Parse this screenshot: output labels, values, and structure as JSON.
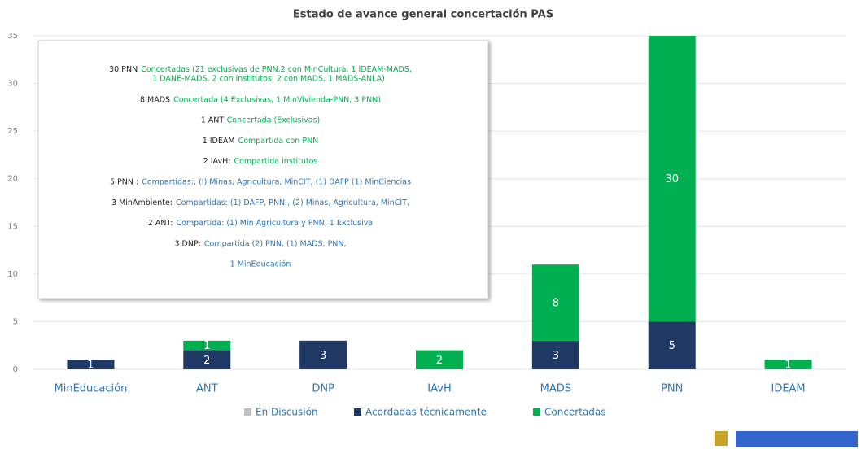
{
  "chart_data": {
    "type": "stacked_bar",
    "title": "Estado de avance general concertación PAS",
    "categories": [
      "MinEducación",
      "ANT",
      "DNP",
      "IAvH",
      "MADS",
      "PNN",
      "IDEAM"
    ],
    "series": [
      {
        "name": "En Discusión",
        "color": "#bfbfbf",
        "values": [
          0,
          0,
          0,
          0,
          0,
          0,
          0
        ]
      },
      {
        "name": "Acordadas técnicamente",
        "color": "#1f3864",
        "values": [
          1,
          2,
          3,
          0,
          3,
          5,
          0
        ]
      },
      {
        "name": "Concertadas",
        "color": "#00b050",
        "values": [
          0,
          1,
          0,
          2,
          8,
          30,
          1
        ]
      }
    ],
    "ylim": [
      0,
      35
    ],
    "yticks": [
      0,
      5,
      10,
      15,
      20,
      25,
      30,
      35
    ],
    "grid": true,
    "annotations": [
      {
        "lead": "30 PNN",
        "text": "Concertadas (21 exclusivas de PNN,2 con MinCultura, 1 IDEAM-MADS,",
        "continued": "1 DANE-MADS, 2 con institutos, 2 con MADS, 1 MADS-ANLA)",
        "color": "#00b050"
      },
      {
        "lead": "8 MADS",
        "text": "Concertada (4 Exclusivas, 1 MinVivienda-PNN, 3 PNN)",
        "color": "#00b050"
      },
      {
        "lead": "1 ANT",
        "text": "Concertada (Exclusivas)",
        "color": "#00b050"
      },
      {
        "lead": "1 IDEAM",
        "text": "Compartida con PNN",
        "color": "#00b050"
      },
      {
        "lead": "2 IAvH:",
        "text": "Compartida institutos",
        "color": "#00b050"
      },
      {
        "lead": "5 PNN :",
        "text": "Compartidas:, (I) Minas, Agricultura, MinCIT, (1) DAFP (1) MinCiencias",
        "color": "#2e75b6"
      },
      {
        "lead": "3 MinAmbiente:",
        "text": "Compartidas: (1) DAFP, PNN., (2) Minas, Agricultura, MinCIT,",
        "color": "#2e75b6"
      },
      {
        "lead": "2 ANT:",
        "text": "Compartida: (1) Min Agricultura y PNN, 1 Exclusiva",
        "color": "#2e75b6"
      },
      {
        "lead": "3 DNP:",
        "text": "Compartida (2) PNN, (1) MADS, PNN,",
        "color": "#2e75b6"
      },
      {
        "lead": "",
        "text": "1 MinEducación",
        "color": "#2e75b6"
      }
    ]
  }
}
